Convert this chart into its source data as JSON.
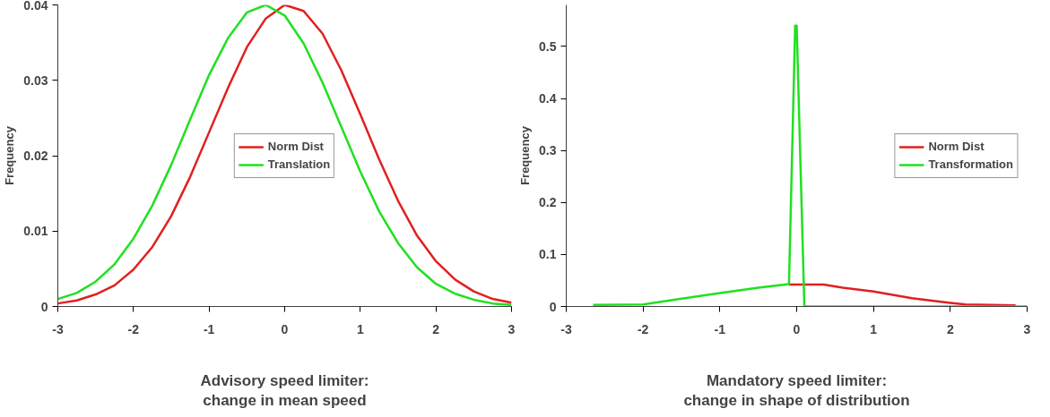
{
  "chart_data": [
    {
      "type": "line",
      "xlabel": "Advisory speed limiter:\nchange in mean speed",
      "ylabel": "Frequency",
      "xlim": [
        -3,
        3
      ],
      "xticks": [
        -3,
        -2,
        -1,
        0,
        1,
        2,
        3
      ],
      "ylim": [
        0,
        0.04
      ],
      "yticks": [
        0,
        0.01,
        0.02,
        0.03,
        0.04
      ],
      "grid": false,
      "legend": "center",
      "marker": "none",
      "line_style": "solid",
      "x": [
        -3,
        -2.75,
        -2.5,
        -2.25,
        -2,
        -1.75,
        -1.5,
        -1.25,
        -1,
        -0.75,
        -0.5,
        -0.25,
        0,
        0.25,
        0.5,
        0.75,
        1,
        1.25,
        1.5,
        1.75,
        2,
        2.25,
        2.5,
        2.75,
        3
      ],
      "series": [
        {
          "name": "Norm Dist",
          "color": "#e02020",
          "values": [
            0.0004,
            0.0008,
            0.0016,
            0.0028,
            0.0049,
            0.0079,
            0.012,
            0.0172,
            0.0231,
            0.029,
            0.0344,
            0.0382,
            0.04,
            0.0392,
            0.0362,
            0.0313,
            0.0255,
            0.0195,
            0.014,
            0.0094,
            0.006,
            0.0036,
            0.002,
            0.001,
            0.0005
          ]
        },
        {
          "name": "Translation",
          "color": "#20e020",
          "values": [
            0.001,
            0.0018,
            0.0033,
            0.0056,
            0.009,
            0.0134,
            0.0188,
            0.0248,
            0.0307,
            0.0356,
            0.039,
            0.04,
            0.0386,
            0.0349,
            0.0297,
            0.0238,
            0.0179,
            0.0126,
            0.0084,
            0.0052,
            0.003,
            0.0017,
            0.0009,
            0.0004,
            0.0002
          ]
        }
      ]
    },
    {
      "type": "line",
      "xlabel": "Mandatory speed limiter:\nchange in shape of distribution",
      "ylabel": "Frequency",
      "xlim": [
        -3,
        3
      ],
      "xticks": [
        -3,
        -2,
        -1,
        0,
        1,
        2,
        3
      ],
      "ylim": [
        0,
        0.58
      ],
      "yticks": [
        0,
        0.1,
        0.2,
        0.3,
        0.4,
        0.5
      ],
      "grid": false,
      "legend": "right",
      "marker": "none",
      "line_style": "solid",
      "series": [
        {
          "name": "Norm Dist",
          "color": "#e02020",
          "x": [
            -0.1,
            0.35,
            0.6,
            1.0,
            1.5,
            2.0,
            2.2,
            2.85
          ],
          "values": [
            0.042,
            0.042,
            0.036,
            0.029,
            0.016,
            0.007,
            0.004,
            0.002
          ]
        },
        {
          "name": "Transformation",
          "color": "#20e020",
          "x": [
            -2.65,
            -2.0,
            -1.5,
            -1.0,
            -0.5,
            -0.1,
            -0.02,
            0.0,
            0.1,
            1.0,
            2.0,
            3.0
          ],
          "values": [
            0.003,
            0.004,
            0.015,
            0.026,
            0.036,
            0.043,
            0.54,
            0.54,
            0.0,
            0.0,
            0.0,
            0.0
          ]
        }
      ]
    }
  ]
}
